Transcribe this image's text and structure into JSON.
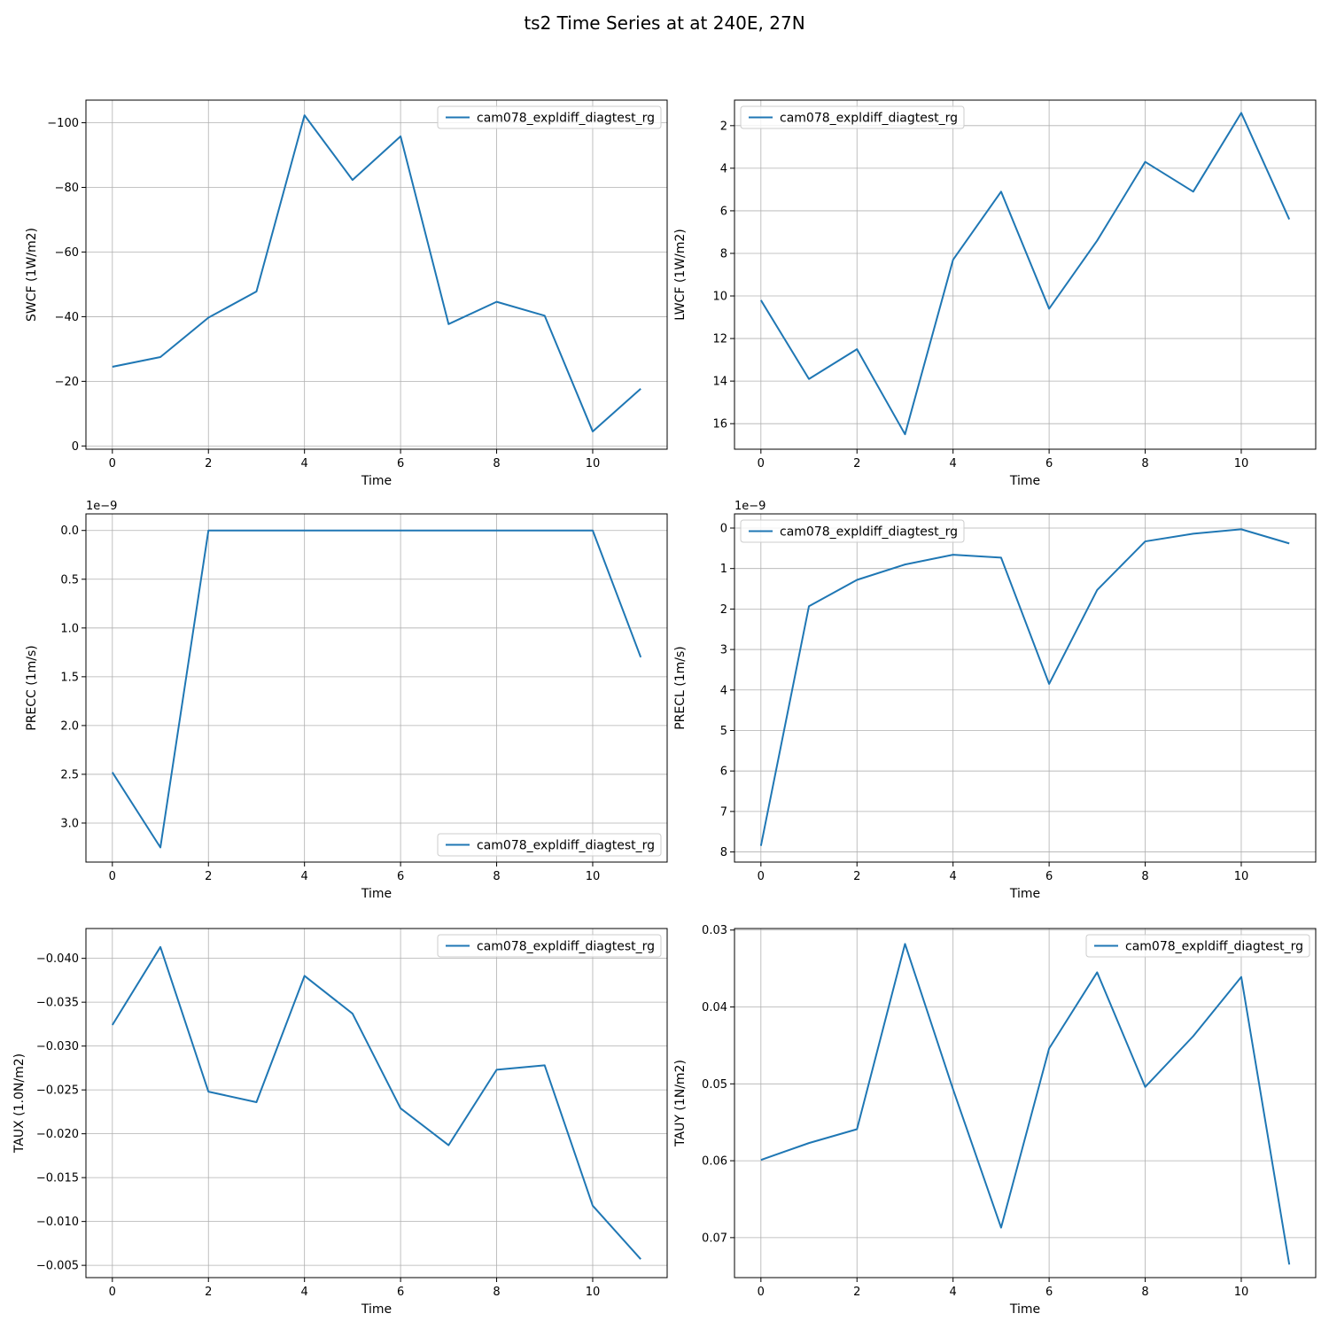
{
  "figure": {
    "title": "ts2 Time Series at at 240E, 27N"
  },
  "colors": {
    "series": "#1f77b4",
    "grid": "#b0b0b0"
  },
  "chart_data": [
    {
      "type": "line",
      "xlabel": "Time",
      "ylabel": "SWCF (1W/m2)",
      "x": [
        0,
        1,
        2,
        3,
        4,
        5,
        6,
        7,
        8,
        9,
        10,
        11
      ],
      "series": [
        {
          "name": "cam078_expldiff_diagtest_rg",
          "values": [
            -24.5,
            -27.5,
            -39.7,
            -47.8,
            -102.3,
            -82.3,
            -95.8,
            -37.7,
            -44.6,
            -40.3,
            -4.5,
            -17.7
          ]
        }
      ],
      "ylim": [
        1,
        -107
      ],
      "yticks": [
        0,
        -20,
        -40,
        -60,
        -80,
        -100
      ],
      "ytick_labels": [
        "0",
        "−20",
        "−40",
        "−60",
        "−80",
        "−100"
      ],
      "xticks": [
        0,
        2,
        4,
        6,
        8,
        10
      ],
      "xlim": [
        -0.55,
        11.55
      ],
      "y_inverted": true,
      "offset_text": "",
      "legend": "upper right",
      "grid": true
    },
    {
      "type": "line",
      "xlabel": "Time",
      "ylabel": "LWCF (1W/m2)",
      "x": [
        0,
        1,
        2,
        3,
        4,
        5,
        6,
        7,
        8,
        9,
        10,
        11
      ],
      "series": [
        {
          "name": "cam078_expldiff_diagtest_rg",
          "values": [
            10.2,
            13.9,
            12.5,
            16.5,
            8.3,
            5.1,
            10.6,
            7.4,
            3.7,
            5.1,
            1.4,
            6.4
          ]
        }
      ],
      "ylim": [
        17.2,
        0.8
      ],
      "yticks": [
        2,
        4,
        6,
        8,
        10,
        12,
        14,
        16
      ],
      "ytick_labels": [
        "2",
        "4",
        "6",
        "8",
        "10",
        "12",
        "14",
        "16"
      ],
      "xticks": [
        0,
        2,
        4,
        6,
        8,
        10
      ],
      "xlim": [
        -0.55,
        11.55
      ],
      "y_inverted": true,
      "offset_text": "",
      "legend": "upper left",
      "grid": true
    },
    {
      "type": "line",
      "xlabel": "Time",
      "ylabel": "PRECC (1m/s)",
      "x": [
        0,
        1,
        2,
        3,
        4,
        5,
        6,
        7,
        8,
        9,
        10,
        11
      ],
      "series": [
        {
          "name": "cam078_expldiff_diagtest_rg",
          "values": [
            2.48,
            3.25,
            0.0,
            0.0,
            0.0,
            0.0,
            0.0,
            0.0,
            0.0,
            0.0,
            0.0,
            1.3
          ]
        }
      ],
      "ylim": [
        3.4,
        -0.17
      ],
      "yticks": [
        0.0,
        0.5,
        1.0,
        1.5,
        2.0,
        2.5,
        3.0
      ],
      "ytick_labels": [
        "0.0",
        "0.5",
        "1.0",
        "1.5",
        "2.0",
        "2.5",
        "3.0"
      ],
      "xticks": [
        0,
        2,
        4,
        6,
        8,
        10
      ],
      "xlim": [
        -0.55,
        11.55
      ],
      "y_inverted": true,
      "offset_text": "1e−9",
      "legend": "lower right",
      "grid": true
    },
    {
      "type": "line",
      "xlabel": "Time",
      "ylabel": "PRECL (1m/s)",
      "x": [
        0,
        1,
        2,
        3,
        4,
        5,
        6,
        7,
        8,
        9,
        10,
        11
      ],
      "series": [
        {
          "name": "cam078_expldiff_diagtest_rg",
          "values": [
            7.85,
            1.93,
            1.28,
            0.9,
            0.66,
            0.73,
            3.85,
            1.53,
            0.33,
            0.14,
            0.03,
            0.38
          ]
        }
      ],
      "ylim": [
        8.25,
        -0.35
      ],
      "yticks": [
        0,
        1,
        2,
        3,
        4,
        5,
        6,
        7,
        8
      ],
      "ytick_labels": [
        "0",
        "1",
        "2",
        "3",
        "4",
        "5",
        "6",
        "7",
        "8"
      ],
      "xticks": [
        0,
        2,
        4,
        6,
        8,
        10
      ],
      "xlim": [
        -0.55,
        11.55
      ],
      "y_inverted": true,
      "offset_text": "1e−9",
      "legend": "upper left",
      "grid": true
    },
    {
      "type": "line",
      "xlabel": "Time",
      "ylabel": "TAUX (1.0N/m2)",
      "x": [
        0,
        1,
        2,
        3,
        4,
        5,
        6,
        7,
        8,
        9,
        10,
        11
      ],
      "series": [
        {
          "name": "cam078_expldiff_diagtest_rg",
          "values": [
            -0.0324,
            -0.0413,
            -0.0248,
            -0.0236,
            -0.038,
            -0.0337,
            -0.0229,
            -0.0187,
            -0.0273,
            -0.0278,
            -0.0118,
            -0.0057
          ]
        }
      ],
      "ylim": [
        -0.0036,
        -0.0434
      ],
      "yticks": [
        -0.005,
        -0.01,
        -0.015,
        -0.02,
        -0.025,
        -0.03,
        -0.035,
        -0.04
      ],
      "ytick_labels": [
        "−0.005",
        "−0.010",
        "−0.015",
        "−0.020",
        "−0.025",
        "−0.030",
        "−0.035",
        "−0.040"
      ],
      "xticks": [
        0,
        2,
        4,
        6,
        8,
        10
      ],
      "xlim": [
        -0.55,
        11.55
      ],
      "y_inverted": false,
      "offset_text": "",
      "legend": "upper right",
      "grid": true
    },
    {
      "type": "line",
      "xlabel": "Time",
      "ylabel": "TAUY (1N/m2)",
      "x": [
        0,
        1,
        2,
        3,
        4,
        5,
        6,
        7,
        8,
        9,
        10,
        11
      ],
      "series": [
        {
          "name": "cam078_expldiff_diagtest_rg",
          "values": [
            0.0599,
            0.0577,
            0.0559,
            0.0318,
            0.0507,
            0.0687,
            0.0454,
            0.0355,
            0.0504,
            0.0438,
            0.0361,
            0.0735
          ]
        }
      ],
      "ylim": [
        0.0752,
        0.0298
      ],
      "yticks": [
        0.03,
        0.04,
        0.05,
        0.06,
        0.07
      ],
      "ytick_labels": [
        "0.03",
        "0.04",
        "0.05",
        "0.06",
        "0.07"
      ],
      "xticks": [
        0,
        2,
        4,
        6,
        8,
        10
      ],
      "xlim": [
        -0.55,
        11.55
      ],
      "y_inverted": true,
      "offset_text": "",
      "legend": "upper right",
      "grid": true
    }
  ]
}
